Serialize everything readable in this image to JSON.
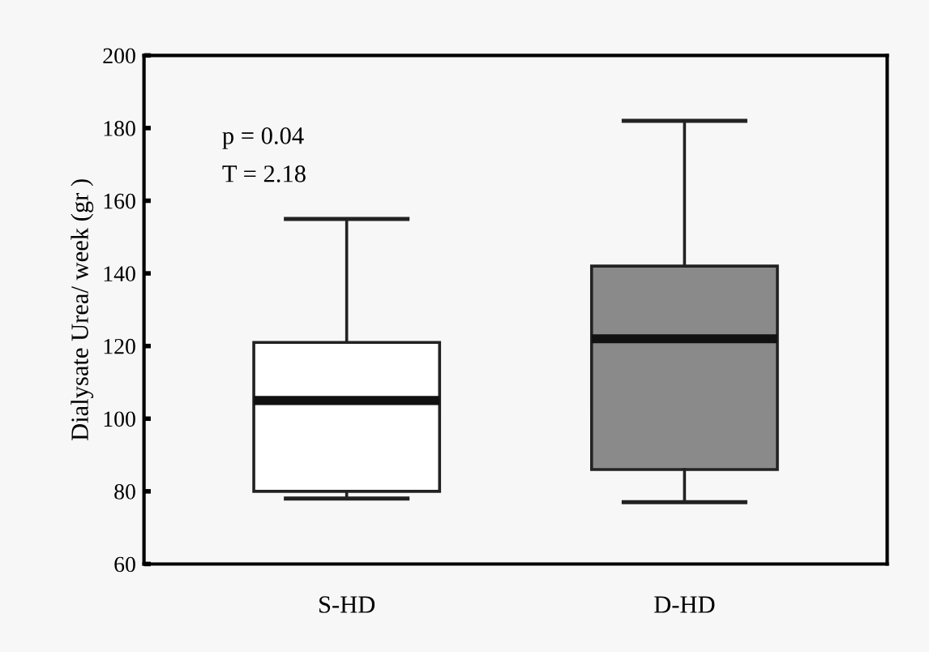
{
  "chart_data": {
    "type": "box",
    "ylabel": "Dialysate Urea/ week (gr )",
    "categories": [
      "S-HD",
      "D-HD"
    ],
    "boxes": [
      {
        "low": 78,
        "q1": 80,
        "median": 105,
        "q3": 121,
        "high": 155
      },
      {
        "low": 77,
        "q1": 86,
        "median": 122,
        "q3": 142,
        "high": 182
      }
    ],
    "colors": [
      "#ffffff",
      "#8a8a8a"
    ],
    "ylim": [
      60,
      200
    ],
    "yticks": [
      60,
      80,
      100,
      120,
      140,
      160,
      180,
      200
    ],
    "annotations": [
      "p = 0.04",
      "T = 2.18"
    ],
    "grid": false
  }
}
